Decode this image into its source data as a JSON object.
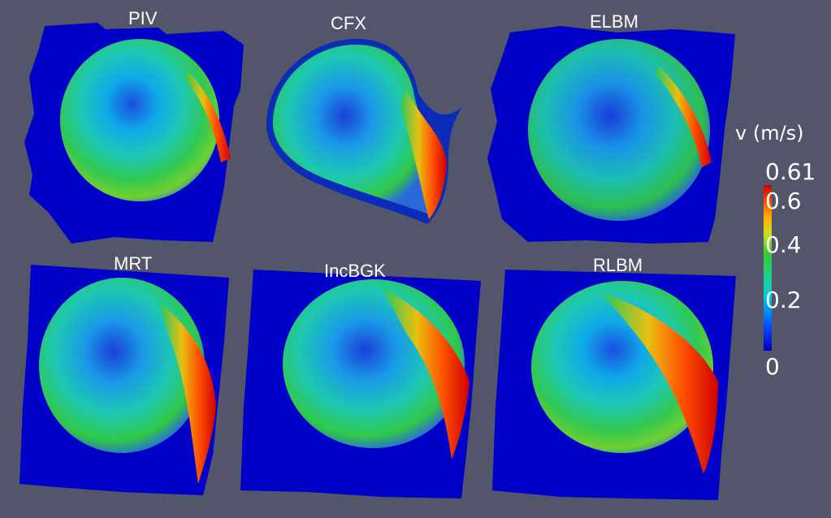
{
  "panels": [
    {
      "label": "PIV"
    },
    {
      "label": "CFX"
    },
    {
      "label": "ELBM"
    },
    {
      "label": "MRT"
    },
    {
      "label": "IncBGK"
    },
    {
      "label": "RLBM"
    }
  ],
  "legend": {
    "title": "v (m/s)",
    "max_label": "0.61",
    "ticks": [
      "0.6",
      "0.4",
      "0.2",
      "0"
    ],
    "colormap": [
      "#0000b4",
      "#0050ff",
      "#00c8e6",
      "#20d08c",
      "#30cc30",
      "#c8e01e",
      "#ffb400",
      "#ff5000",
      "#cc0000"
    ]
  },
  "colors": {
    "background": "#53556a",
    "field_low": "#0000c8",
    "field_high": "#dd1a00"
  }
}
